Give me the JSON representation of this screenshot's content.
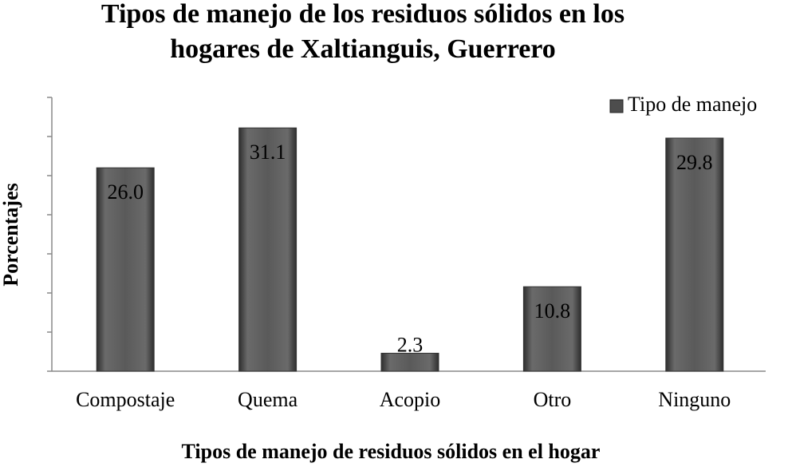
{
  "chart_data": {
    "type": "bar",
    "title": "Tipos de manejo de los residuos sólidos en los hogares de Xaltianguis, Guerrero",
    "x_label": "Tipos de manejo de residuos sólidos en el hogar",
    "y_label": "Porcentajes",
    "categories": [
      "Compostaje",
      "Quema",
      "Acopio",
      "Otro",
      "Ninguno"
    ],
    "series": [
      {
        "name": "Tipo de manejo",
        "color": "#4d4d4d",
        "values": [
          26,
          31.1,
          2.3,
          10.8,
          29.8
        ],
        "value_labels": [
          "26.0",
          "31.1",
          "2.3",
          "10.8",
          "29.8"
        ]
      }
    ],
    "ylim": [
      0,
      35
    ],
    "yticks": [
      0,
      5,
      10,
      15,
      20,
      25,
      30,
      35
    ],
    "legend": "top-right"
  }
}
